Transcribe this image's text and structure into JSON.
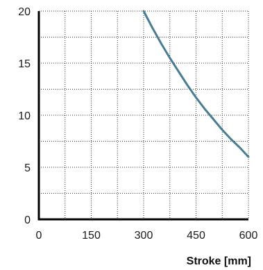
{
  "chart_data": {
    "type": "line",
    "title": "",
    "xlabel": "Stroke [mm]",
    "ylabel": "",
    "xlim": [
      0,
      600
    ],
    "ylim": [
      0,
      20
    ],
    "x_ticks": [
      0,
      150,
      300,
      450,
      600
    ],
    "y_ticks": [
      0,
      5,
      10,
      15,
      20
    ],
    "x_grid_step": 75,
    "y_grid_step": 2.5,
    "grid": true,
    "grid_style": "dotted",
    "series": [
      {
        "color": "#4a7d92",
        "x": [
          300,
          325,
          350,
          375,
          400,
          425,
          450,
          475,
          500,
          525,
          550,
          575,
          600
        ],
        "y": [
          20.0,
          18.4,
          16.9,
          15.5,
          14.2,
          12.9,
          11.7,
          10.6,
          9.6,
          8.6,
          7.7,
          6.9,
          6.0
        ]
      }
    ]
  }
}
